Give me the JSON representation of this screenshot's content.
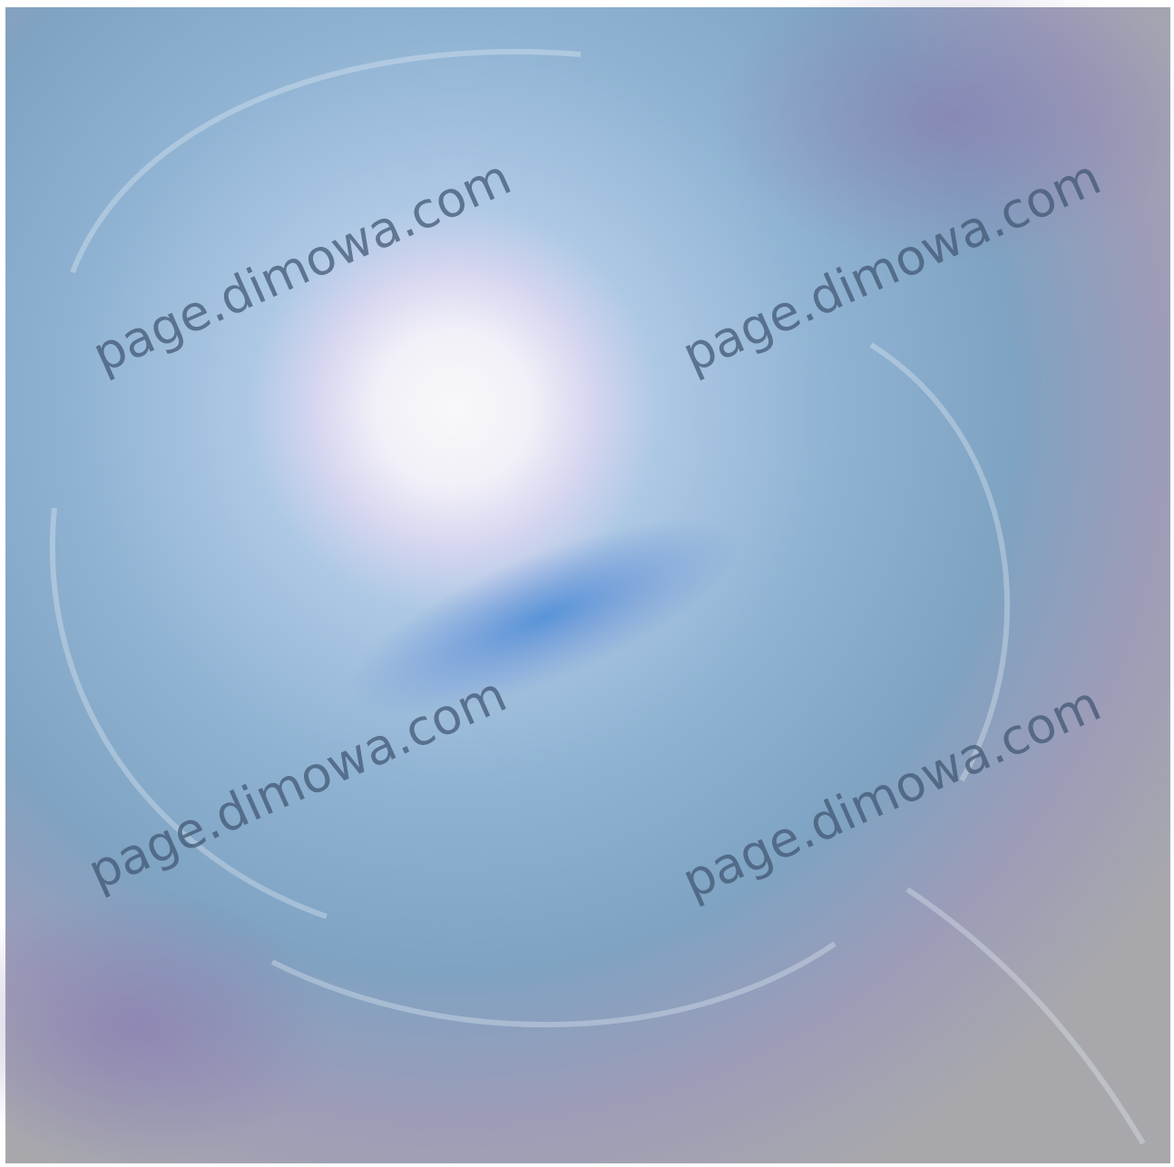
{
  "watermarks": [
    "page.dimowa.com",
    "page.dimowa.com",
    "page.dimowa.com",
    "page.dimowa.com"
  ]
}
